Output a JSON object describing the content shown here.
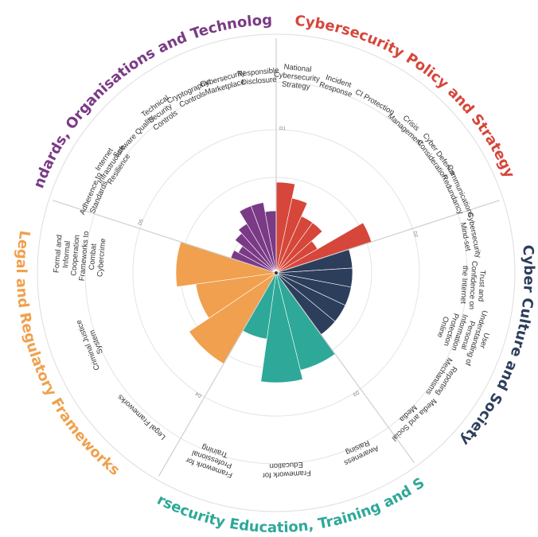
{
  "chart_data": {
    "type": "polar-bar",
    "rings": 4,
    "dimensions": [
      {
        "id": "policy",
        "title": "Cybersecurity Policy and Strategy",
        "color": "#d6463a",
        "tick": "D1",
        "factors": [
          "National Cybersecurity Strategy",
          "Incident Response",
          "CI Protection",
          "Crisis Management",
          "Cyber Defence Consideration",
          "Communications Redundancy"
        ],
        "values": [
          1.9,
          1.6,
          1.3,
          1.3,
          1.0,
          2.1
        ]
      },
      {
        "id": "culture",
        "title": "Cyber Culture and Society",
        "color": "#2c3e5c",
        "tick": "D2",
        "factors": [
          "Cybersecurity Mind-set",
          "Trust and Confidence on the Internet",
          "User Understanding of Personal Information Protection Online",
          "Reporting Mechanisms",
          "Media and Social Media"
        ],
        "values": [
          1.6,
          1.6,
          1.6,
          1.6,
          1.6
        ]
      },
      {
        "id": "education",
        "title": "Cybersecurity Education, Training and Skills",
        "color": "#2ea898",
        "tick": "D3",
        "factors": [
          "Awareness Raising",
          "Framework for Education",
          "Framework for Professional Training"
        ],
        "values": [
          2.1,
          2.3,
          1.4
        ]
      },
      {
        "id": "legal",
        "title": "Legal and Regulatory Frameworks",
        "color": "#f0a04e",
        "tick": "D4",
        "factors": [
          "Legal Frameworks",
          "Criminal Justice System",
          "Formal and Informal Cooperation Frameworks to Combat Cybercrime"
        ],
        "values": [
          2.2,
          1.7,
          2.1
        ]
      },
      {
        "id": "standards",
        "title": "Standards, Organisations and Technologies",
        "color": "#7a3a86",
        "tick": "D5",
        "factors": [
          "Adherence to Standards",
          "Internet Infrastructure Resilience",
          "Software Quality",
          "Technical Security Controls",
          "Cryptographic Controls",
          "Cybersecurity Marketplace",
          "Responsible Disclosure"
        ],
        "values": [
          1.0,
          0.9,
          1.1,
          1.2,
          1.5,
          1.5,
          1.3
        ]
      }
    ]
  }
}
